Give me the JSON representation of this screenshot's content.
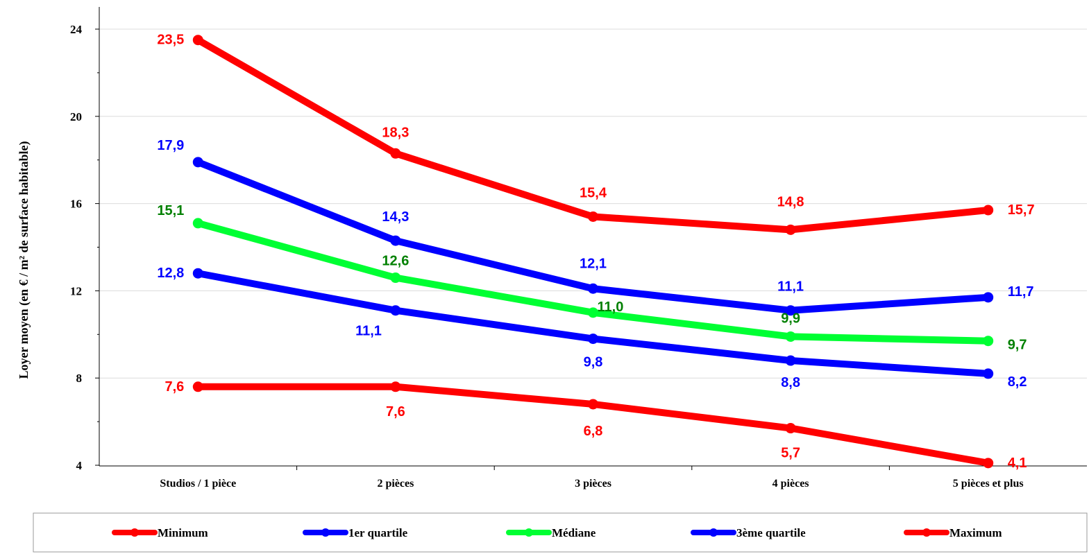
{
  "chart_data": {
    "type": "line",
    "title": "",
    "xlabel": "",
    "ylabel": "Loyer moyen (en € / m² de surface habitable)",
    "categories": [
      "Studios / 1 pièce",
      "2 pièces",
      "3 pièces",
      "4 pièces",
      "5 pièces et plus"
    ],
    "ylim": [
      4,
      24
    ],
    "yticks": [
      4,
      8,
      12,
      16,
      20,
      24
    ],
    "grid": "horizontal",
    "legend": "bottom",
    "series": [
      {
        "name": "Minimum",
        "color": "#ff0000",
        "label_color": "#ff0000",
        "values": [
          7.6,
          7.6,
          6.8,
          5.7,
          4.1
        ],
        "labels": [
          "7,6",
          "7,6",
          "6,8",
          "5,7",
          "4,1"
        ]
      },
      {
        "name": "1er quartile",
        "color": "#0000ff",
        "label_color": "#0000ff",
        "values": [
          12.8,
          11.1,
          9.8,
          8.8,
          8.2
        ],
        "labels": [
          "12,8",
          "11,1",
          "9,8",
          "8,8",
          "8,2"
        ]
      },
      {
        "name": "Médiane",
        "color": "#00ff33",
        "label_color": "#008000",
        "values": [
          15.1,
          12.6,
          11.0,
          9.9,
          9.7
        ],
        "labels": [
          "15,1",
          "12,6",
          "11,0",
          "9,9",
          "9,7"
        ]
      },
      {
        "name": "3ème quartile",
        "color": "#0000ff",
        "label_color": "#0000ff",
        "values": [
          17.9,
          14.3,
          12.1,
          11.1,
          11.7
        ],
        "labels": [
          "17,9",
          "14,3",
          "12,1",
          "11,1",
          "11,7"
        ]
      },
      {
        "name": "Maximum",
        "color": "#ff0000",
        "label_color": "#ff0000",
        "values": [
          23.5,
          18.3,
          15.4,
          14.8,
          15.7
        ],
        "labels": [
          "23,5",
          "18,3",
          "15,4",
          "14,8",
          "15,7"
        ]
      }
    ]
  }
}
